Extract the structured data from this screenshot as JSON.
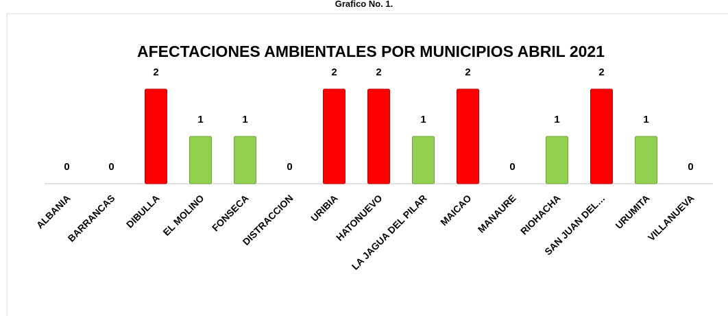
{
  "chart_data": {
    "type": "bar",
    "caption": "Grafico No. 1.",
    "title": "AFECTACIONES AMBIENTALES POR MUNICIPIOS ABRIL 2021",
    "categories": [
      "ALBANIA",
      "BARRANCAS",
      "DIBULLA",
      "EL MOLINO",
      "FONSECA",
      "DISTRACCION",
      "URIBIA",
      "HATONUEVO",
      "LA JAGUA DEL PILAR",
      "MAICAO",
      "MANAURE",
      "RIOHACHA",
      "SAN JUAN DEL…",
      "URUMITA",
      "VILLANUEVA"
    ],
    "values": [
      0,
      0,
      2,
      1,
      1,
      0,
      2,
      2,
      1,
      2,
      0,
      1,
      2,
      1,
      0
    ],
    "colors": [
      "#92d050",
      "#92d050",
      "#ff0000",
      "#92d050",
      "#92d050",
      "#92d050",
      "#ff0000",
      "#ff0000",
      "#92d050",
      "#ff0000",
      "#92d050",
      "#92d050",
      "#ff0000",
      "#92d050",
      "#92d050"
    ]
  }
}
